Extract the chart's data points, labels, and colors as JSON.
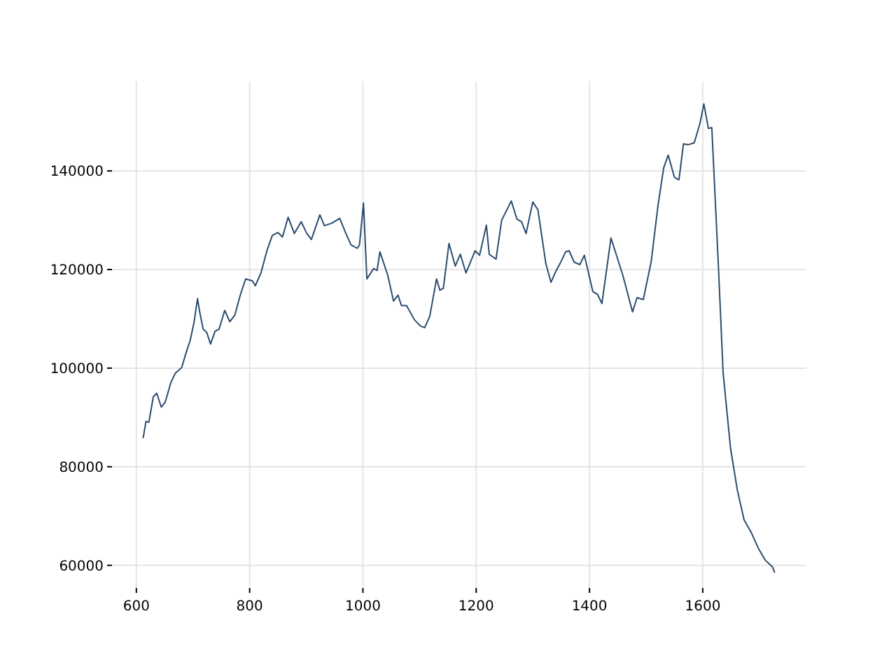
{
  "chart_data": {
    "type": "line",
    "x": [
      612,
      617,
      622,
      630,
      636,
      644,
      651,
      661,
      669,
      680,
      688,
      695,
      702,
      708,
      712,
      718,
      724,
      731,
      739,
      746,
      756,
      765,
      774,
      784,
      793,
      805,
      810,
      820,
      831,
      840,
      850,
      858,
      868,
      879,
      891,
      901,
      909,
      924,
      932,
      945,
      959,
      970,
      979,
      990,
      994,
      1001,
      1007,
      1019,
      1025,
      1030,
      1044,
      1054,
      1062,
      1068,
      1077,
      1091,
      1101,
      1109,
      1118,
      1130,
      1136,
      1142,
      1152,
      1163,
      1172,
      1182,
      1198,
      1206,
      1218,
      1223,
      1235,
      1245,
      1262,
      1272,
      1280,
      1288,
      1300,
      1309,
      1323,
      1332,
      1340,
      1348,
      1358,
      1364,
      1373,
      1383,
      1391,
      1406,
      1414,
      1422,
      1438,
      1459,
      1476,
      1484,
      1495,
      1509,
      1521,
      1531,
      1539,
      1550,
      1558,
      1566,
      1574,
      1585,
      1595,
      1602,
      1610,
      1616,
      1628,
      1636,
      1649,
      1661,
      1673,
      1685,
      1698,
      1710,
      1723,
      1727
    ],
    "series": [
      {
        "color": "#2b4c6f",
        "values": [
          85800,
          89200,
          89000,
          94200,
          94900,
          92100,
          93100,
          97100,
          99000,
          100100,
          103200,
          105600,
          109400,
          114100,
          111300,
          107900,
          107300,
          104900,
          107500,
          107900,
          111700,
          109400,
          110800,
          115000,
          118100,
          117700,
          116700,
          119300,
          124000,
          126900,
          127500,
          126600,
          130600,
          127300,
          129700,
          127300,
          126100,
          131100,
          128900,
          129400,
          130400,
          127300,
          125000,
          124300,
          125000,
          133500,
          118100,
          120200,
          119800,
          123600,
          118800,
          113600,
          114800,
          112700,
          112700,
          109800,
          108600,
          108200,
          110500,
          118100,
          115800,
          116200,
          125300,
          120700,
          123100,
          119300,
          123800,
          122900,
          129000,
          123100,
          122100,
          130000,
          133900,
          130200,
          129700,
          127300,
          133700,
          132100,
          121200,
          117400,
          119500,
          121200,
          123600,
          123800,
          121500,
          121000,
          122900,
          115500,
          115000,
          113100,
          126400,
          118800,
          111400,
          114300,
          113900,
          121600,
          133000,
          140600,
          143200,
          138700,
          138200,
          145500,
          145300,
          145700,
          149600,
          153600,
          148600,
          148800,
          119800,
          99000,
          83800,
          75300,
          69200,
          66800,
          63500,
          61100,
          59700,
          58500
        ]
      }
    ],
    "xlim": [
      557,
      1783
    ],
    "ylim": [
      55400,
      158200
    ],
    "xticks": [
      600,
      800,
      1000,
      1200,
      1400,
      1600
    ],
    "yticks": [
      60000,
      80000,
      100000,
      120000,
      140000
    ],
    "grid": true
  }
}
